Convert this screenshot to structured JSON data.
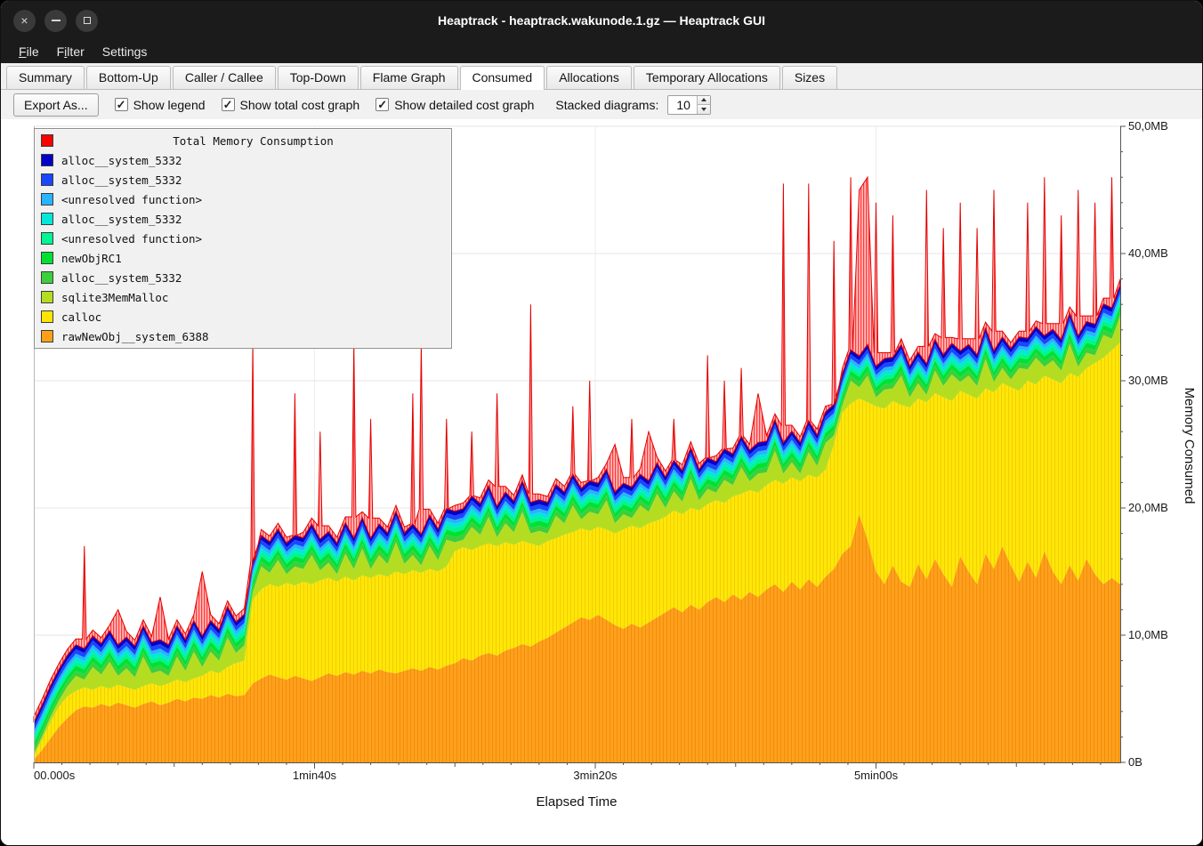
{
  "window": {
    "title": "Heaptrack - heaptrack.wakunode.1.gz — Heaptrack GUI",
    "controls": [
      "close",
      "minimize",
      "maximize"
    ]
  },
  "menubar": {
    "items": [
      {
        "label": "File",
        "underline": 0
      },
      {
        "label": "Filter",
        "underline": 1
      },
      {
        "label": "Settings",
        "underline": 6
      }
    ]
  },
  "tabs": {
    "items": [
      "Summary",
      "Bottom-Up",
      "Caller / Callee",
      "Top-Down",
      "Flame Graph",
      "Consumed",
      "Allocations",
      "Temporary Allocations",
      "Sizes"
    ],
    "active": "Consumed"
  },
  "toolbar": {
    "export_button": "Export As...",
    "checkboxes": [
      {
        "label": "Show legend",
        "checked": true
      },
      {
        "label": "Show total cost graph",
        "checked": true
      },
      {
        "label": "Show detailed cost graph",
        "checked": true
      }
    ],
    "stacked_label": "Stacked diagrams:",
    "stacked_value": "10"
  },
  "chart_data": {
    "type": "area",
    "title": "Total Memory Consumption",
    "xlabel": "Elapsed Time",
    "ylabel": "Memory Consumed",
    "x_ticks": [
      "00.000s",
      "1min40s",
      "3min20s",
      "5min00s"
    ],
    "x_tick_seconds": [
      0,
      100,
      200,
      300
    ],
    "x_range_seconds": [
      0,
      387
    ],
    "x_step_seconds": 3,
    "y_ticks": [
      "0B",
      "10,0MB",
      "20,0MB",
      "30,0MB",
      "40,0MB",
      "50,0MB"
    ],
    "y_tick_mb": [
      0,
      10,
      20,
      30,
      40,
      50
    ],
    "y_range_mb": [
      0,
      50
    ],
    "values_unit": "MB",
    "values_are_cumulative_stack_tops": true,
    "legend": {
      "title": "Total Memory Consumption",
      "title_color": "#ff0000",
      "items": [
        {
          "label": "alloc__system_5332",
          "color": "#0000c8"
        },
        {
          "label": "alloc__system_5332",
          "color": "#1a46ff"
        },
        {
          "label": "<unresolved function>",
          "color": "#28b4ff"
        },
        {
          "label": "alloc__system_5332",
          "color": "#00e8d8"
        },
        {
          "label": "<unresolved function>",
          "color": "#00f593"
        },
        {
          "label": "newObjRC1",
          "color": "#00e132"
        },
        {
          "label": "alloc__system_5332",
          "color": "#3ccf3c"
        },
        {
          "label": "sqlite3MemMalloc",
          "color": "#b4dd22"
        },
        {
          "label": "calloc",
          "color": "#ffe400"
        },
        {
          "label": "rawNewObj__system_6388",
          "color": "#ffa018"
        }
      ]
    },
    "layers": [
      {
        "name": "rawNewObj__system_6388",
        "color": "#ffa018",
        "pattern": "orangehatch",
        "values": [
          0.2,
          1.0,
          1.9,
          2.8,
          3.5,
          4.1,
          4.4,
          4.3,
          4.6,
          4.4,
          4.7,
          4.5,
          4.3,
          4.6,
          4.8,
          4.5,
          4.7,
          5.0,
          4.8,
          5.1,
          5.0,
          5.3,
          5.1,
          5.4,
          5.2,
          5.3,
          6.2,
          6.6,
          6.9,
          6.7,
          6.5,
          6.8,
          6.6,
          6.4,
          6.7,
          7.0,
          6.8,
          7.1,
          6.9,
          7.2,
          7.0,
          7.3,
          7.1,
          7.0,
          7.2,
          7.4,
          7.2,
          7.5,
          7.3,
          7.6,
          7.8,
          8.2,
          8.0,
          8.4,
          8.6,
          8.4,
          8.8,
          9.0,
          9.3,
          9.1,
          9.5,
          9.8,
          10.2,
          10.6,
          11.0,
          11.4,
          11.2,
          11.6,
          11.2,
          10.8,
          10.5,
          10.9,
          10.6,
          11.0,
          11.4,
          11.8,
          12.2,
          11.8,
          12.4,
          12.0,
          12.6,
          13.0,
          12.6,
          13.2,
          12.8,
          13.4,
          13.0,
          13.6,
          14.0,
          13.4,
          14.2,
          13.6,
          14.4,
          13.8,
          14.6,
          15.2,
          16.4,
          17.0,
          19.5,
          17.5,
          15.0,
          14.0,
          15.5,
          14.2,
          13.8,
          15.6,
          14.4,
          16.0,
          14.8,
          13.8,
          16.2,
          15.0,
          14.0,
          16.4,
          15.2,
          17.0,
          15.5,
          14.2,
          15.8,
          14.5,
          16.6,
          15.0,
          14.0,
          15.5,
          14.3,
          16.0,
          14.8,
          14.0,
          14.5,
          14.0
        ]
      },
      {
        "name": "calloc",
        "color": "#ffe400",
        "pattern": "yellowhatch",
        "values": [
          0.5,
          1.8,
          3.2,
          4.4,
          5.2,
          5.6,
          5.9,
          5.7,
          6.0,
          5.8,
          6.1,
          5.9,
          5.7,
          6.0,
          6.2,
          6.0,
          6.2,
          6.5,
          6.3,
          6.6,
          6.8,
          7.2,
          7.0,
          7.5,
          7.8,
          8.0,
          12.8,
          13.6,
          14.0,
          13.8,
          14.1,
          13.9,
          14.2,
          14.0,
          14.3,
          14.5,
          14.2,
          14.6,
          14.3,
          14.7,
          14.5,
          14.8,
          14.6,
          15.0,
          14.8,
          15.1,
          14.9,
          15.2,
          15.0,
          15.4,
          16.6,
          16.9,
          16.7,
          17.0,
          17.2,
          17.0,
          17.3,
          17.1,
          17.4,
          17.2,
          17.0,
          17.4,
          17.6,
          17.9,
          18.1,
          18.4,
          18.2,
          18.5,
          18.3,
          18.0,
          18.3,
          18.6,
          18.4,
          18.8,
          19.0,
          19.3,
          19.8,
          19.5,
          20.0,
          19.8,
          20.3,
          20.6,
          20.4,
          20.9,
          21.1,
          21.4,
          21.2,
          21.8,
          22.2,
          21.9,
          22.4,
          22.1,
          22.6,
          22.4,
          23.0,
          25.0,
          27.5,
          28.2,
          28.6,
          28.3,
          28.0,
          27.8,
          28.4,
          28.1,
          27.9,
          28.6,
          28.3,
          29.0,
          28.7,
          28.4,
          29.2,
          28.9,
          28.6,
          29.4,
          29.1,
          29.8,
          29.5,
          29.2,
          30.0,
          29.7,
          30.4,
          30.1,
          29.8,
          30.6,
          30.3,
          31.0,
          31.4,
          31.8,
          32.4,
          33.0
        ]
      },
      {
        "name": "sqlite3MemMalloc",
        "color": "#b4dd22",
        "values": [
          0.7,
          2.1,
          3.6,
          4.9,
          6.0,
          6.8,
          6.5,
          7.5,
          6.9,
          7.9,
          6.8,
          7.4,
          6.7,
          8.3,
          7.0,
          7.2,
          6.8,
          8.3,
          7.2,
          8.7,
          7.5,
          8.7,
          8.0,
          9.8,
          8.6,
          9.2,
          13.4,
          15.4,
          14.9,
          15.9,
          14.8,
          15.4,
          15.2,
          16.3,
          15.1,
          15.7,
          14.8,
          16.4,
          15.2,
          16.8,
          15.2,
          16.3,
          15.6,
          17.3,
          15.6,
          16.3,
          15.5,
          17.0,
          15.9,
          17.5,
          17.3,
          17.5,
          18.5,
          17.9,
          19.3,
          17.7,
          18.8,
          18.1,
          19.7,
          18.0,
          18.2,
          18.0,
          19.4,
          18.8,
          20.2,
          19.1,
          19.7,
          19.5,
          20.6,
          18.8,
          19.5,
          19.2,
          20.2,
          19.7,
          21.1,
          20.0,
          21.3,
          20.5,
          22.3,
          20.6,
          21.5,
          21.2,
          22.2,
          21.8,
          23.2,
          22.1,
          22.7,
          22.8,
          24.5,
          22.7,
          23.6,
          22.7,
          24.4,
          23.3,
          25.1,
          25.7,
          28.1,
          30.0,
          29.5,
          30.4,
          28.7,
          29.3,
          29.4,
          30.4,
          28.7,
          29.8,
          28.9,
          30.8,
          29.6,
          30.5,
          29.9,
          30.4,
          29.6,
          31.7,
          29.9,
          31.0,
          30.1,
          31.0,
          30.9,
          31.8,
          31.1,
          31.6,
          30.8,
          32.9,
          31.1,
          32.2,
          32.0,
          33.6,
          33.3,
          35.1
        ]
      },
      {
        "name": "alloc__system_5332",
        "color": "#3ccf3c",
        "offset": 0.4
      },
      {
        "name": "newObjRC1",
        "color": "#00e132",
        "offset": 0.4
      },
      {
        "name": "<unresolved function>",
        "color": "#00f593",
        "offset": 0.35
      },
      {
        "name": "alloc__system_5332",
        "color": "#00e8d8",
        "offset": 0.3
      },
      {
        "name": "<unresolved function>",
        "color": "#28b4ff",
        "offset": 0.3
      },
      {
        "name": "alloc__system_5332",
        "color": "#1a46ff",
        "offset": 0.35
      },
      {
        "name": "alloc__system_5332",
        "color": "#0000c8",
        "offset": 0.35
      },
      {
        "name": "Total Memory Consumption",
        "color": "#ff0000",
        "pattern": "redhatch",
        "stroke": "#e30000",
        "total": [
          3.6,
          5.0,
          6.5,
          7.8,
          8.9,
          9.7,
          17.0,
          10.4,
          9.8,
          10.8,
          12.0,
          10.3,
          9.6,
          11.2,
          9.9,
          13.0,
          9.7,
          11.2,
          10.1,
          11.6,
          15.0,
          11.6,
          10.9,
          12.7,
          11.5,
          12.1,
          33.0,
          18.3,
          17.8,
          18.8,
          17.7,
          29.0,
          18.1,
          19.2,
          26.0,
          18.6,
          17.7,
          19.3,
          33.0,
          19.7,
          27.0,
          19.2,
          18.5,
          20.2,
          18.5,
          29.0,
          33.0,
          19.9,
          18.8,
          27.0,
          20.2,
          20.4,
          26.0,
          20.8,
          22.2,
          29.0,
          21.7,
          21.0,
          22.6,
          36.0,
          21.1,
          20.9,
          22.3,
          21.7,
          28.0,
          22.0,
          30.0,
          22.4,
          23.5,
          25.0,
          22.4,
          27.0,
          23.1,
          26.0,
          24.0,
          22.9,
          27.0,
          23.4,
          25.2,
          23.5,
          32.0,
          24.1,
          30.0,
          24.7,
          31.0,
          25.0,
          29.0,
          25.7,
          27.4,
          45.5,
          26.5,
          25.6,
          45.5,
          26.2,
          28.0,
          41.0,
          31.0,
          46.0,
          45.0,
          46.0,
          44.0,
          32.2,
          43.0,
          33.3,
          31.6,
          32.7,
          45.0,
          33.7,
          42.0,
          33.4,
          44.0,
          33.3,
          42.0,
          34.6,
          45.0,
          33.9,
          33.0,
          33.9,
          44.0,
          34.7,
          46.0,
          34.5,
          43.0,
          35.8,
          45.0,
          35.1,
          44.0,
          36.5,
          46.0,
          38.0
        ]
      }
    ]
  }
}
